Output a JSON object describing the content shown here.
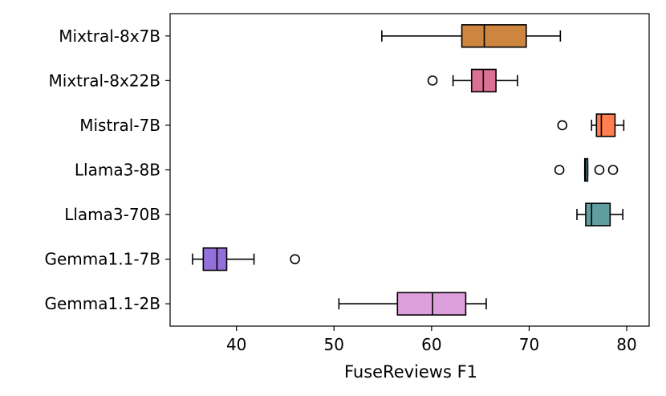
{
  "chart_data": {
    "type": "boxplot",
    "orientation": "horizontal",
    "xlabel": "FuseReviews F1",
    "ylabel": "",
    "xlim": [
      33.2,
      82.3
    ],
    "xticks": [
      40,
      50,
      60,
      70,
      80
    ],
    "grid": false,
    "series": [
      {
        "name": "Mixtral-8x7B",
        "color": "#CD853F",
        "whisker_low": 54.9,
        "q1": 63.1,
        "median": 65.4,
        "q3": 69.7,
        "whisker_high": 73.2,
        "outliers": []
      },
      {
        "name": "Mixtral-8x22B",
        "color": "#DB7093",
        "whisker_low": 62.2,
        "q1": 64.1,
        "median": 65.3,
        "q3": 66.6,
        "whisker_high": 68.8,
        "outliers": [
          60.1
        ]
      },
      {
        "name": "Mistral-7B",
        "color": "#FF7F50",
        "whisker_low": 76.4,
        "q1": 76.9,
        "median": 77.4,
        "q3": 78.8,
        "whisker_high": 79.7,
        "outliers": [
          73.4
        ]
      },
      {
        "name": "Llama3-8B",
        "color": "#87CEFA",
        "whisker_low": 75.7,
        "q1": 75.7,
        "median": 75.8,
        "q3": 76.0,
        "whisker_high": 76.0,
        "outliers": [
          73.1,
          77.2,
          78.6
        ]
      },
      {
        "name": "Llama3-70B",
        "color": "#5F9EA0",
        "whisker_low": 74.9,
        "q1": 75.8,
        "median": 76.4,
        "q3": 78.3,
        "whisker_high": 79.6,
        "outliers": []
      },
      {
        "name": "Gemma1.1-7B",
        "color": "#9370DB",
        "whisker_low": 35.5,
        "q1": 36.6,
        "median": 38.0,
        "q3": 39.0,
        "whisker_high": 41.8,
        "outliers": [
          46.0
        ]
      },
      {
        "name": "Gemma1.1-2B",
        "color": "#DDA0DD",
        "whisker_low": 50.5,
        "q1": 56.5,
        "median": 60.1,
        "q3": 63.5,
        "whisker_high": 65.6,
        "outliers": []
      }
    ]
  }
}
